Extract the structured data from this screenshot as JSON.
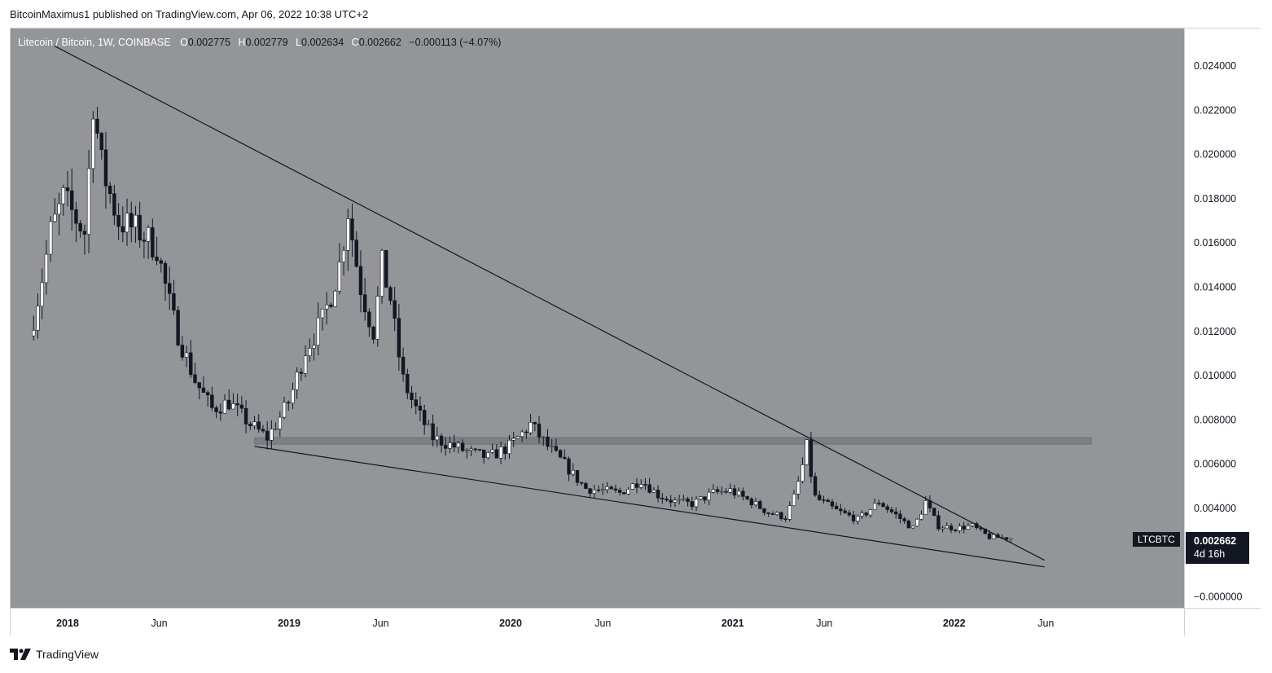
{
  "header": {
    "publish_line": "BitcoinMaximus1 published on TradingView.com, Apr 06, 2022 10:38 UTC+2"
  },
  "legend": {
    "title": "Litecoin / Bitcoin, 1W, COINBASE",
    "open_label": "O",
    "open": "0.002775",
    "high_label": "H",
    "high": "0.002779",
    "low_label": "L",
    "low": "0.002634",
    "close_label": "C",
    "close": "0.002662",
    "change": "−0.000113 (−4.07%)"
  },
  "currency_badge": "BTC",
  "ticker_tag": "LTCBTC",
  "price_tag": {
    "price": "0.002662",
    "countdown": "4d 16h"
  },
  "footer": {
    "brand": "TradingView"
  },
  "colors": {
    "background": "#939598",
    "up_candle": "#ffffff",
    "down_candle": "#131722",
    "wick": "#131722",
    "trendline": "#131722",
    "zone": "#7d7f83"
  },
  "chart_data": {
    "type": "candlestick",
    "symbol": "LTCBTC",
    "interval": "1W",
    "x_ticks": [
      "2018",
      "Jun",
      "2019",
      "Jun",
      "2020",
      "Jun",
      "2021",
      "Jun",
      "2022",
      "Jun"
    ],
    "x_tick_dates": [
      "2018-01-01",
      "2018-06-01",
      "2019-01-01",
      "2019-06-01",
      "2020-01-01",
      "2020-06-01",
      "2021-01-01",
      "2021-06-01",
      "2022-01-01",
      "2022-06-01"
    ],
    "y_ticks": [
      "0.024000",
      "0.022000",
      "0.020000",
      "0.018000",
      "0.016000",
      "0.014000",
      "0.012000",
      "0.010000",
      "0.008000",
      "0.006000",
      "0.004000",
      "−0.000000"
    ],
    "y_tick_values": [
      0.024,
      0.022,
      0.02,
      0.018,
      0.016,
      0.014,
      0.012,
      0.01,
      0.008,
      0.006,
      0.004,
      0.0
    ],
    "ylim": [
      -0.0005,
      0.0257
    ],
    "last_price": 0.002662,
    "horizontal_zone": {
      "from": 0.0069,
      "to": 0.0072,
      "start_date": "2018-11-05",
      "end_date": "2022-08-15"
    },
    "trendlines": [
      {
        "name": "descending resistance",
        "from": [
          "2017-12-11",
          0.0249
        ],
        "to": [
          "2022-05-30",
          0.00165
        ]
      },
      {
        "name": "rising support",
        "from": [
          "2018-11-05",
          0.0068
        ],
        "to": [
          "2022-05-30",
          0.00135
        ]
      }
    ],
    "anchors": [
      [
        "2017-11-06",
        0.0118
      ],
      [
        "2017-12-11",
        0.0165
      ],
      [
        "2018-01-01",
        0.018
      ],
      [
        "2018-02-05",
        0.0165
      ],
      [
        "2018-02-19",
        0.0225
      ],
      [
        "2018-03-05",
        0.0195
      ],
      [
        "2018-04-02",
        0.017
      ],
      [
        "2018-05-07",
        0.0165
      ],
      [
        "2018-06-04",
        0.0158
      ],
      [
        "2018-07-02",
        0.0125
      ],
      [
        "2018-08-06",
        0.0098
      ],
      [
        "2018-09-03",
        0.0085
      ],
      [
        "2018-10-01",
        0.0088
      ],
      [
        "2018-11-05",
        0.0078
      ],
      [
        "2018-12-03",
        0.0072
      ],
      [
        "2019-01-07",
        0.0088
      ],
      [
        "2019-02-04",
        0.0112
      ],
      [
        "2019-03-04",
        0.0125
      ],
      [
        "2019-04-01",
        0.015
      ],
      [
        "2019-04-15",
        0.0175
      ],
      [
        "2019-05-06",
        0.014
      ],
      [
        "2019-05-27",
        0.012
      ],
      [
        "2019-06-10",
        0.015
      ],
      [
        "2019-06-24",
        0.0135
      ],
      [
        "2019-07-15",
        0.0098
      ],
      [
        "2019-08-05",
        0.0085
      ],
      [
        "2019-09-02",
        0.0072
      ],
      [
        "2019-10-07",
        0.0068
      ],
      [
        "2019-11-04",
        0.0065
      ],
      [
        "2019-12-02",
        0.0063
      ],
      [
        "2020-01-06",
        0.0068
      ],
      [
        "2020-02-10",
        0.0078
      ],
      [
        "2020-03-09",
        0.0068
      ],
      [
        "2020-04-06",
        0.006
      ],
      [
        "2020-05-11",
        0.0049
      ],
      [
        "2020-06-08",
        0.0048
      ],
      [
        "2020-07-06",
        0.0047
      ],
      [
        "2020-08-10",
        0.0053
      ],
      [
        "2020-09-07",
        0.0046
      ],
      [
        "2020-10-05",
        0.0043
      ],
      [
        "2020-11-02",
        0.0042
      ],
      [
        "2020-12-07",
        0.0047
      ],
      [
        "2021-01-04",
        0.0048
      ],
      [
        "2021-02-08",
        0.0043
      ],
      [
        "2021-03-08",
        0.0038
      ],
      [
        "2021-04-05",
        0.0036
      ],
      [
        "2021-04-19",
        0.0045
      ],
      [
        "2021-05-10",
        0.0068
      ],
      [
        "2021-05-24",
        0.0045
      ],
      [
        "2021-06-28",
        0.0039
      ],
      [
        "2021-08-02",
        0.0035
      ],
      [
        "2021-09-06",
        0.0043
      ],
      [
        "2021-10-04",
        0.0037
      ],
      [
        "2021-11-01",
        0.0031
      ],
      [
        "2021-11-22",
        0.0043
      ],
      [
        "2021-12-13",
        0.0032
      ],
      [
        "2022-01-10",
        0.0031
      ],
      [
        "2022-02-07",
        0.0032
      ],
      [
        "2022-03-07",
        0.0027
      ],
      [
        "2022-04-04",
        0.002662
      ]
    ]
  }
}
